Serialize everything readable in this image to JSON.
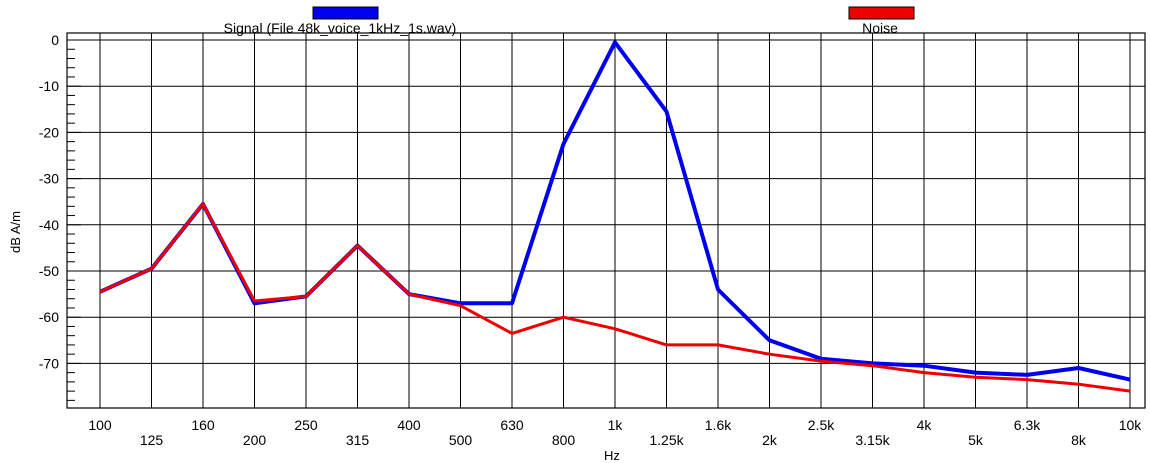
{
  "chart_data": {
    "type": "line",
    "xlabel": "Hz",
    "ylabel": "dB A/m",
    "ylim": [
      -80,
      0
    ],
    "yticks": [
      0,
      -10,
      -20,
      -30,
      -40,
      -50,
      -60,
      -70
    ],
    "ytick_labels": [
      "0",
      "-10",
      "-20",
      "-30",
      "-40",
      "-50",
      "-60",
      "-70"
    ],
    "categories": [
      "100",
      "125",
      "160",
      "200",
      "250",
      "315",
      "400",
      "500",
      "630",
      "800",
      "1k",
      "1.25k",
      "1.6k",
      "2k",
      "2.5k",
      "3.15k",
      "4k",
      "5k",
      "6.3k",
      "8k",
      "10k"
    ],
    "grid": true,
    "legend_placement": "top",
    "series": [
      {
        "name": "Signal (File 48k_voice_1kHz_1s.wav)",
        "color": "#0000ee",
        "values": [
          -54.5,
          -49.5,
          -35.5,
          -57.0,
          -55.5,
          -44.5,
          -55.0,
          -57.0,
          -57.0,
          -22.5,
          -0.5,
          -15.5,
          -54.0,
          -65.0,
          -69.0,
          -70.0,
          -70.5,
          -72.0,
          -72.5,
          -71.0,
          -73.5
        ]
      },
      {
        "name": "Noise",
        "color": "#ee0000",
        "values": [
          -54.5,
          -49.5,
          -35.5,
          -56.5,
          -55.5,
          -44.5,
          -55.0,
          -57.5,
          -63.5,
          -60.0,
          -62.5,
          -66.0,
          -66.0,
          -68.0,
          -69.5,
          -70.5,
          -72.0,
          -73.0,
          -73.5,
          -74.5,
          -76.0
        ]
      }
    ]
  }
}
